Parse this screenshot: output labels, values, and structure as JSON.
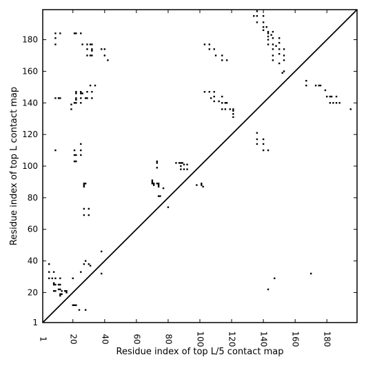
{
  "chart_data": {
    "type": "scatter",
    "title": "",
    "xlabel": "Residue index of top L/5 contact map",
    "ylabel": "Residue index of top L contact map",
    "xlim": [
      1,
      199
    ],
    "ylim": [
      1,
      199
    ],
    "xticks": [
      1,
      20,
      40,
      60,
      80,
      100,
      120,
      140,
      160,
      180
    ],
    "yticks": [
      1,
      20,
      40,
      60,
      80,
      100,
      120,
      140,
      160,
      180
    ],
    "grid": false,
    "diagonal": true,
    "marker_color": "#000000",
    "series": [
      {
        "points": [
          [
            136,
            198
          ],
          [
            136,
            195
          ],
          [
            134,
            195
          ],
          [
            136,
            191
          ],
          [
            140,
            195
          ],
          [
            140,
            191
          ],
          [
            140,
            188
          ],
          [
            142,
            188
          ],
          [
            143,
            185
          ],
          [
            143,
            184
          ],
          [
            143,
            182
          ],
          [
            143,
            180
          ],
          [
            143,
            177
          ],
          [
            146,
            185
          ],
          [
            146,
            181
          ],
          [
            146,
            177
          ],
          [
            146,
            174
          ],
          [
            146,
            170
          ],
          [
            146,
            167
          ],
          [
            150,
            181
          ],
          [
            150,
            178
          ],
          [
            150,
            174
          ],
          [
            150,
            171
          ],
          [
            153,
            174
          ],
          [
            153,
            170
          ],
          [
            153,
            167
          ],
          [
            153,
            160
          ],
          [
            152,
            159
          ],
          [
            140,
            186
          ],
          [
            145,
            183
          ],
          [
            148,
            176
          ],
          [
            150,
            165
          ],
          [
            103,
            177
          ],
          [
            106,
            177
          ],
          [
            106,
            174
          ],
          [
            109,
            174
          ],
          [
            110,
            170
          ],
          [
            114,
            170
          ],
          [
            114,
            167
          ],
          [
            117,
            167
          ],
          [
            103,
            147
          ],
          [
            106,
            147
          ],
          [
            109,
            147
          ],
          [
            109,
            144
          ],
          [
            114,
            144
          ],
          [
            109,
            141
          ],
          [
            112,
            141
          ],
          [
            114,
            140
          ],
          [
            116,
            140
          ],
          [
            117,
            140
          ],
          [
            114,
            136
          ],
          [
            116,
            136
          ],
          [
            119,
            136
          ],
          [
            121,
            136
          ],
          [
            121,
            135
          ],
          [
            121,
            133
          ],
          [
            121,
            131
          ],
          [
            107,
            143
          ],
          [
            9,
            184
          ],
          [
            12,
            184
          ],
          [
            9,
            181
          ],
          [
            9,
            177
          ],
          [
            21,
            184
          ],
          [
            22,
            184
          ],
          [
            25,
            184
          ],
          [
            26,
            177
          ],
          [
            29,
            177
          ],
          [
            31,
            177
          ],
          [
            32,
            177
          ],
          [
            29,
            174
          ],
          [
            32,
            174
          ],
          [
            32,
            173
          ],
          [
            29,
            170
          ],
          [
            31,
            170
          ],
          [
            32,
            170
          ],
          [
            38,
            174
          ],
          [
            40,
            174
          ],
          [
            40,
            170
          ],
          [
            42,
            167
          ],
          [
            9,
            143
          ],
          [
            11,
            143
          ],
          [
            12,
            143
          ],
          [
            19,
            139
          ],
          [
            21,
            140
          ],
          [
            22,
            140
          ],
          [
            19,
            136
          ],
          [
            22,
            142
          ],
          [
            22,
            143
          ],
          [
            22,
            146
          ],
          [
            22,
            147
          ],
          [
            25,
            147
          ],
          [
            25,
            146
          ],
          [
            26,
            146
          ],
          [
            25,
            143
          ],
          [
            25,
            140
          ],
          [
            28,
            143
          ],
          [
            29,
            143
          ],
          [
            29,
            147
          ],
          [
            31,
            151
          ],
          [
            34,
            151
          ],
          [
            32,
            147
          ],
          [
            32,
            143
          ],
          [
            9,
            110
          ],
          [
            21,
            110
          ],
          [
            21,
            107
          ],
          [
            22,
            107
          ],
          [
            25,
            107
          ],
          [
            25,
            110
          ],
          [
            25,
            114
          ],
          [
            21,
            103
          ],
          [
            22,
            103
          ],
          [
            27,
            89
          ],
          [
            27,
            88
          ],
          [
            27,
            87
          ],
          [
            28,
            89
          ],
          [
            27,
            73
          ],
          [
            30,
            73
          ],
          [
            27,
            69
          ],
          [
            30,
            69
          ],
          [
            38,
            46
          ],
          [
            38,
            32
          ],
          [
            73,
            103
          ],
          [
            73,
            102
          ],
          [
            73,
            99
          ],
          [
            70,
            91
          ],
          [
            70,
            90
          ],
          [
            70,
            89
          ],
          [
            71,
            89
          ],
          [
            73,
            89
          ],
          [
            74,
            89
          ],
          [
            74,
            88
          ],
          [
            74,
            87
          ],
          [
            71,
            88
          ],
          [
            74,
            81
          ],
          [
            75,
            81
          ],
          [
            77,
            86
          ],
          [
            80,
            74
          ],
          [
            85,
            102
          ],
          [
            87,
            102
          ],
          [
            88,
            102
          ],
          [
            89,
            102
          ],
          [
            90,
            101
          ],
          [
            88,
            100
          ],
          [
            92,
            101
          ],
          [
            88,
            98
          ],
          [
            90,
            98
          ],
          [
            92,
            98
          ],
          [
            98,
            88
          ],
          [
            101,
            89
          ],
          [
            101,
            88
          ],
          [
            102,
            87
          ],
          [
            5,
            38
          ],
          [
            5,
            33
          ],
          [
            8,
            33
          ],
          [
            5,
            29
          ],
          [
            7,
            29
          ],
          [
            9,
            29
          ],
          [
            12,
            29
          ],
          [
            8,
            26
          ],
          [
            8,
            25
          ],
          [
            9,
            25
          ],
          [
            11,
            25
          ],
          [
            12,
            25
          ],
          [
            8,
            21
          ],
          [
            9,
            21
          ],
          [
            11,
            22
          ],
          [
            12,
            22
          ],
          [
            13,
            21
          ],
          [
            15,
            21
          ],
          [
            12,
            19
          ],
          [
            12,
            18
          ],
          [
            13,
            19
          ],
          [
            16,
            21
          ],
          [
            16,
            20
          ],
          [
            20,
            29
          ],
          [
            20,
            12
          ],
          [
            21,
            12
          ],
          [
            22,
            12
          ],
          [
            25,
            33
          ],
          [
            24,
            9
          ],
          [
            28,
            9
          ],
          [
            28,
            40
          ],
          [
            27,
            38
          ],
          [
            30,
            38
          ],
          [
            31,
            37
          ],
          [
            136,
            121
          ],
          [
            136,
            117
          ],
          [
            136,
            114
          ],
          [
            140,
            117
          ],
          [
            140,
            114
          ],
          [
            140,
            110
          ],
          [
            143,
            110
          ],
          [
            143,
            22
          ],
          [
            147,
            29
          ],
          [
            167,
            154
          ],
          [
            167,
            151
          ],
          [
            173,
            151
          ],
          [
            175,
            151
          ],
          [
            176,
            151
          ],
          [
            179,
            148
          ],
          [
            180,
            144
          ],
          [
            182,
            144
          ],
          [
            183,
            144
          ],
          [
            182,
            140
          ],
          [
            184,
            140
          ],
          [
            186,
            144
          ],
          [
            186,
            140
          ],
          [
            188,
            140
          ],
          [
            195,
            136
          ],
          [
            170,
            32
          ]
        ]
      }
    ]
  }
}
